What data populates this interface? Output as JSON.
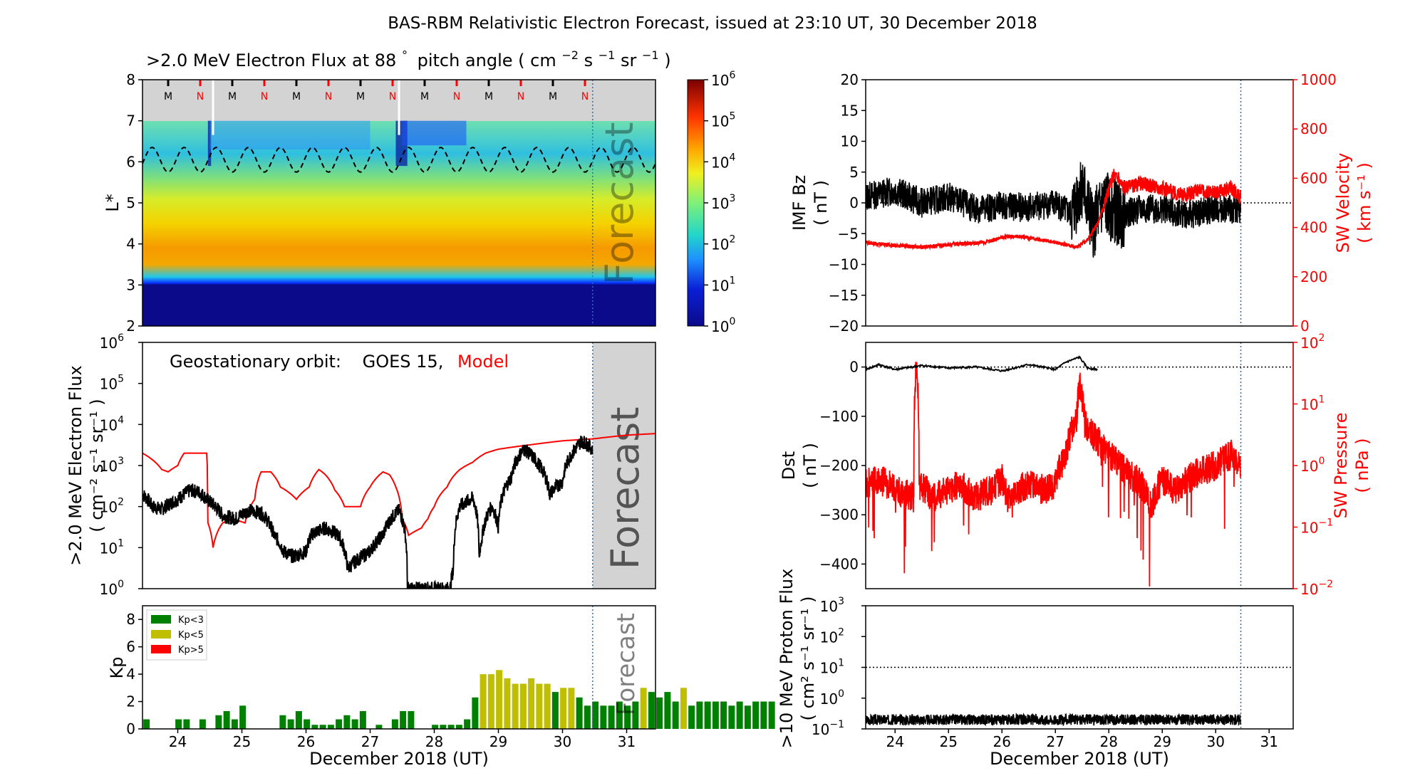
{
  "figure_title": "BAS-RBM Relativistic Electron Forecast, issued at 23:10 UT, 30 December 2018",
  "xaxis": {
    "label": "December 2018 (UT)",
    "range": [
      23.45,
      31.45
    ],
    "forecast_start": 30.47,
    "ticks": [
      "24",
      "25",
      "26",
      "27",
      "28",
      "29",
      "30",
      "31"
    ]
  },
  "colors": {
    "model": "#ff0000",
    "observed": "#000000",
    "forecast_line": "#1f77b4",
    "forecast_region": "#d3d3d3"
  },
  "forecast_text": "Forecast",
  "forecast_text_small": "Forecast",
  "chart_data": [
    {
      "id": "lstar_flux",
      "type": "heatmap",
      "title_prefix": ">2.0 MeV Electron Flux at 88",
      "title_unit_parts": [
        "°",
        "pitch angle ( cm",
        "−2",
        " s",
        "−1",
        " sr",
        "−1",
        " )"
      ],
      "ylabel": "L*",
      "ylim": [
        2,
        8
      ],
      "yticks": [
        "2",
        "3",
        "4",
        "5",
        "6",
        "7",
        "8"
      ],
      "colorbar": {
        "min_exp": 0,
        "max_exp": 6,
        "tick_labels": [
          "10",
          "10",
          "10",
          "10",
          "10",
          "10",
          "10"
        ],
        "tick_exps": [
          "0",
          "1",
          "2",
          "3",
          "4",
          "5",
          "6"
        ]
      },
      "mn_markers": [
        "M",
        "N",
        "M",
        "N",
        "M",
        "N",
        "M",
        "N",
        "M",
        "N",
        "M",
        "N",
        "M",
        "N"
      ],
      "mn_positions": [
        23.85,
        24.35,
        24.85,
        25.35,
        25.85,
        26.35,
        26.85,
        27.35,
        27.85,
        28.35,
        28.85,
        29.35,
        29.85,
        30.35
      ],
      "dashed_line": {
        "mean": 6.05,
        "amplitude": 0.3,
        "period_days": 0.5
      }
    },
    {
      "id": "geo_flux",
      "type": "line",
      "annotation_label": "Geostationary orbit:",
      "annotation_obs": "GOES 15,",
      "annotation_model": "Model",
      "ylabel_line1": ">2.0 MeV Electron Flux",
      "ylabel_line2": "( cm⁻² s⁻¹ sr⁻¹ )",
      "ylim_exp": [
        0,
        6
      ],
      "ytick_base": "10",
      "ytick_exps": [
        "0",
        "1",
        "2",
        "3",
        "4",
        "5",
        "6"
      ],
      "scale": "log",
      "series": [
        {
          "name": "GOES 15",
          "x": [
            23.45,
            23.6,
            23.75,
            24.0,
            24.2,
            24.35,
            24.45,
            24.5,
            24.7,
            24.9,
            25.1,
            25.3,
            25.5,
            25.65,
            25.8,
            26.0,
            26.1,
            26.3,
            26.5,
            26.65,
            26.8,
            27.0,
            27.2,
            27.45,
            27.58,
            27.65,
            28.0,
            28.25,
            28.3,
            28.4,
            28.6,
            28.7,
            28.75,
            28.9,
            29.0,
            29.2,
            29.4,
            29.6,
            29.8,
            30.0,
            30.2,
            30.3,
            30.47
          ],
          "y": [
            200,
            100,
            85,
            150,
            250,
            220,
            150,
            130,
            60,
            50,
            80,
            70,
            20,
            8,
            6,
            8,
            22,
            30,
            20,
            3,
            5,
            8,
            20,
            80,
            1,
            1,
            1,
            1,
            3,
            100,
            160,
            5,
            20,
            100,
            30,
            500,
            2500,
            1200,
            200,
            400,
            2500,
            4000,
            2500
          ]
        }
      ],
      "model": {
        "name": "Model",
        "x": [
          23.45,
          23.65,
          23.75,
          23.85,
          24.0,
          24.1,
          24.45,
          24.47,
          24.55,
          24.6,
          24.7,
          24.85,
          25.05,
          25.2,
          25.3,
          25.45,
          25.6,
          25.85,
          26.05,
          26.2,
          26.3,
          26.45,
          26.6,
          26.85,
          27.0,
          27.2,
          27.3,
          27.4,
          27.5,
          27.6,
          27.8,
          27.9,
          28.0,
          28.2,
          28.4,
          28.6,
          28.8,
          29.0,
          29.5,
          30.0,
          30.5,
          31.0,
          31.45
        ],
        "y": [
          2000,
          1200,
          800,
          700,
          1000,
          2000,
          2000,
          40,
          10,
          20,
          40,
          50,
          40,
          150,
          700,
          700,
          300,
          150,
          300,
          800,
          600,
          250,
          100,
          100,
          300,
          700,
          600,
          300,
          50,
          20,
          30,
          50,
          100,
          300,
          800,
          1200,
          2000,
          2500,
          3200,
          4000,
          4500,
          5500,
          6000
        ]
      }
    },
    {
      "id": "kp",
      "type": "bar",
      "ylabel": "Kp",
      "ylim": [
        0,
        9
      ],
      "yticks": [
        "0",
        "2",
        "4",
        "6",
        "8"
      ],
      "legend": [
        {
          "name": "Kp<3",
          "color": "#008000"
        },
        {
          "name": "Kp<5",
          "color": "#bfbf00"
        },
        {
          "name": "Kp>5",
          "color": "#ff0000"
        }
      ],
      "bar_width_days": 0.1,
      "kp_values": [
        0.7,
        0,
        0,
        0,
        0.7,
        0.7,
        0,
        0.7,
        0,
        1,
        1.3,
        0.7,
        1.7,
        0,
        0,
        0,
        0,
        1,
        0.7,
        1.3,
        0.7,
        0.3,
        0.3,
        0.3,
        0.7,
        1,
        0.7,
        1.3,
        0,
        0.3,
        0,
        0.7,
        1.3,
        1.3,
        0,
        0,
        0.3,
        0.3,
        0.3,
        0.3,
        0.7,
        2.3,
        4,
        4,
        4.3,
        3.7,
        3.3,
        3.3,
        3.7,
        3.3,
        3.3,
        2.7,
        3.0,
        3.0,
        2.3,
        1.7,
        2.0,
        1.7,
        1.7,
        2.0,
        1.7,
        2.0,
        3.0,
        2.7,
        2.3,
        2.7,
        2.0,
        3.0,
        1.7,
        2.0,
        2.0,
        2.0,
        2.0,
        1.7,
        2.0,
        1.7,
        2.0,
        2.0,
        2.0
      ]
    },
    {
      "id": "imf_bz",
      "type": "line",
      "ylabel_line1": "IMF Bz",
      "ylabel_line2": "( nT )",
      "ylim": [
        -20,
        20
      ],
      "yticks": [
        "−20",
        "−15",
        "−10",
        "−5",
        "0",
        "5",
        "10",
        "15",
        "20"
      ],
      "ylabel_right_line1": "SW Velocity",
      "ylabel_right_line2": "( km s⁻¹ )",
      "ylim_right": [
        0,
        1000
      ],
      "yticks_right": [
        "0",
        "200",
        "400",
        "600",
        "800",
        "1000"
      ],
      "series": [
        {
          "name": "IMF Bz",
          "x": [
            23.45,
            24.0,
            24.5,
            25.0,
            25.5,
            26.0,
            26.5,
            27.0,
            27.3,
            27.5,
            27.7,
            27.9,
            28.2,
            28.6,
            29.0,
            29.5,
            30.0,
            30.47
          ],
          "y": [
            1,
            2,
            0,
            1,
            -1,
            -0.5,
            -0.8,
            0,
            -2,
            3,
            -4,
            0,
            -2,
            -1,
            -1,
            -2,
            -1,
            -1
          ]
        },
        {
          "name": "SW Velocity",
          "axis": "right",
          "x": [
            23.45,
            23.8,
            24.5,
            25.0,
            25.7,
            26.0,
            26.3,
            27.0,
            27.4,
            27.6,
            27.8,
            27.95,
            28.1,
            28.3,
            28.6,
            29.0,
            29.4,
            29.7,
            30.0,
            30.3,
            30.47
          ],
          "y": [
            340,
            330,
            320,
            330,
            340,
            360,
            365,
            340,
            320,
            350,
            420,
            520,
            620,
            560,
            580,
            560,
            530,
            550,
            540,
            560,
            520
          ]
        }
      ]
    },
    {
      "id": "dst",
      "type": "line",
      "ylabel_line1": "Dst",
      "ylabel_line2": "( nT )",
      "ylim": [
        -450,
        50
      ],
      "yticks": [
        "−400",
        "−300",
        "−200",
        "−100",
        "0"
      ],
      "ylabel_right_line1": "SW Pressure",
      "ylabel_right_line2": "( nPa )",
      "ylim_right_exp": [
        -2,
        2
      ],
      "ytick_right_base": "10",
      "ytick_right_exps": [
        "−2",
        "−1",
        "0",
        "1",
        "2"
      ],
      "series": [
        {
          "name": "Dst",
          "x": [
            23.45,
            23.7,
            24.0,
            24.5,
            25.0,
            25.5,
            26.0,
            26.5,
            27.0,
            27.2,
            27.45,
            27.6,
            27.8
          ],
          "y": [
            -5,
            5,
            -5,
            3,
            -2,
            0,
            -8,
            5,
            -5,
            10,
            20,
            -2,
            -5
          ]
        },
        {
          "name": "SW Pressure",
          "axis": "right",
          "x": [
            23.45,
            23.7,
            24.0,
            24.35,
            24.4,
            24.45,
            24.7,
            25.0,
            25.2,
            25.5,
            25.8,
            26.0,
            26.1,
            26.5,
            26.8,
            27.0,
            27.2,
            27.4,
            27.45,
            27.55,
            27.7,
            28.0,
            28.3,
            28.6,
            28.8,
            29.0,
            29.2,
            29.4,
            29.7,
            30.0,
            30.3,
            30.47
          ],
          "y": [
            0.5,
            0.6,
            0.4,
            0.3,
            40,
            0.5,
            0.3,
            0.4,
            0.5,
            0.3,
            0.4,
            0.6,
            0.3,
            0.5,
            0.4,
            0.5,
            1.5,
            6,
            20,
            5,
            3,
            1.5,
            0.8,
            0.5,
            0.2,
            0.6,
            0.4,
            0.5,
            0.8,
            1.0,
            1.5,
            1.0
          ]
        }
      ]
    },
    {
      "id": "proton_flux",
      "type": "line",
      "ylabel_line1": ">10 MeV Proton Flux",
      "ylabel_line2": "( cm² s⁻¹ sr⁻¹ )",
      "ylim_exp": [
        -1,
        3
      ],
      "ytick_base": "10",
      "ytick_exps": [
        "−1",
        "0",
        "1",
        "2",
        "3"
      ],
      "threshold": 10,
      "series": [
        {
          "name": ">10 MeV Proton Flux",
          "x": [
            23.45,
            30.47
          ],
          "y": [
            0.2,
            0.2
          ]
        }
      ]
    }
  ]
}
